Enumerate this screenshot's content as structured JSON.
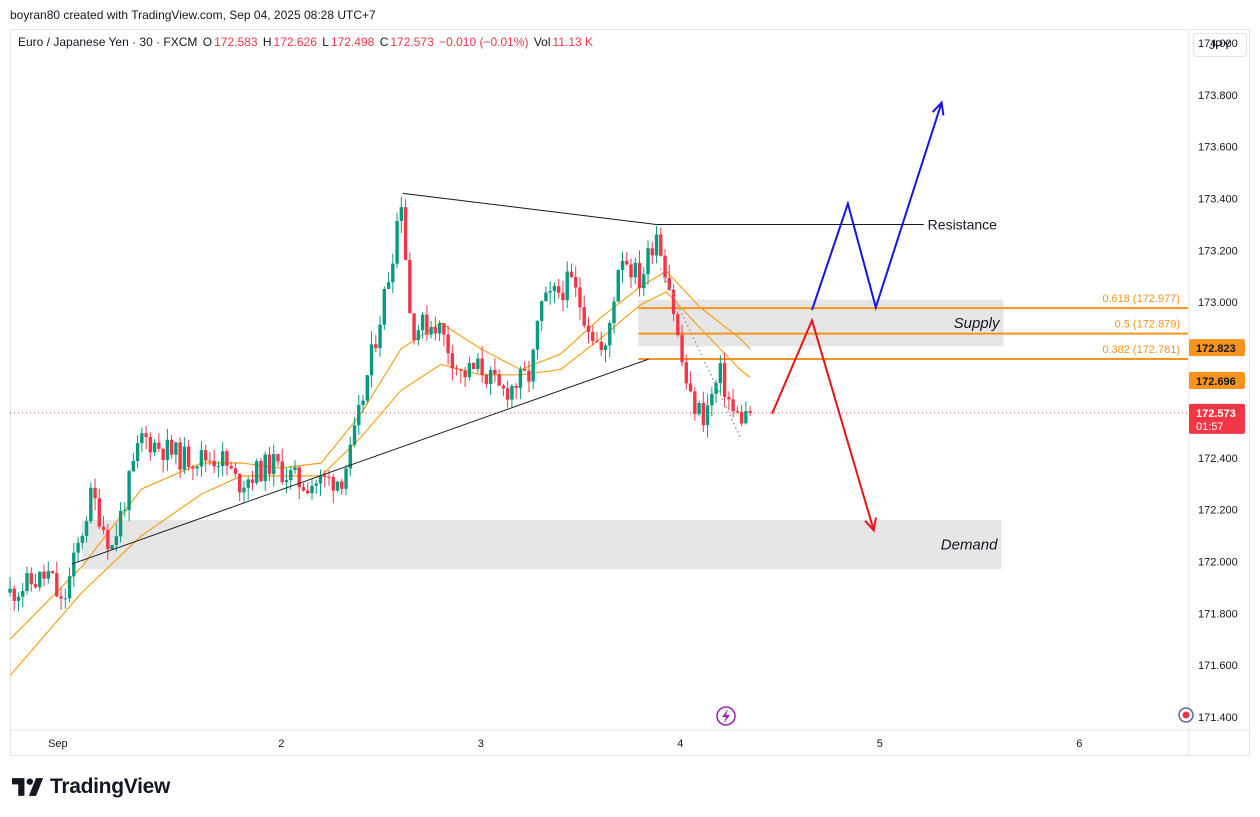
{
  "header": {
    "credit": "boyran80 created with TradingView.com, Sep 04, 2025 08:28 UTC+7"
  },
  "legend": {
    "symbol": "Euro / Japanese Yen · 30 · FXCM",
    "o_label": "O",
    "o_value": "172.583",
    "h_label": "H",
    "h_value": "172.626",
    "l_label": "L",
    "l_value": "172.498",
    "c_label": "C",
    "c_value": "172.573",
    "change": "−0.010 (−0.01%)",
    "vol_label": "Vol",
    "vol_value": "11.13 K"
  },
  "currency_button": "JPY",
  "brand": {
    "name": "TradingView",
    "icon": "tradingview-logo-icon"
  },
  "colors": {
    "up": "#089981",
    "down": "#f23645",
    "ema": "#f7a21b",
    "fib": "#f7931e",
    "zone": "#e6e6e6",
    "bull_path": "#1414e6",
    "bear_path": "#e61414"
  },
  "chart_data": {
    "type": "candlestick",
    "symbol": "EURJPY",
    "timeframe": "30",
    "y_axis": {
      "ticks": [
        "174.000",
        "173.800",
        "173.600",
        "173.400",
        "173.200",
        "173.000",
        "172.400",
        "172.200",
        "172.000",
        "171.800",
        "171.600",
        "171.400"
      ],
      "ylim": [
        171.35,
        174.05
      ]
    },
    "x_axis": {
      "ticks": [
        {
          "label": "Sep",
          "x": 0.88
        },
        {
          "label": "2",
          "x": 2
        },
        {
          "label": "3",
          "x": 3
        },
        {
          "label": "4",
          "x": 4
        },
        {
          "label": "5",
          "x": 5
        },
        {
          "label": "6",
          "x": 6
        }
      ],
      "xlim": [
        0.64,
        6.55
      ]
    },
    "price_labels": [
      {
        "value": "172.823",
        "price": 172.823,
        "color": "#f7931e"
      },
      {
        "value": "172.696",
        "price": 172.696,
        "color": "#f7931e"
      },
      {
        "value": "172.573",
        "countdown": "01:57",
        "price": 172.573,
        "color": "#f23645"
      }
    ],
    "zones": [
      {
        "label": "Supply",
        "x0": 3.79,
        "x1": 5.62,
        "y_low": 172.83,
        "y_high": 173.01
      },
      {
        "label": "Demand",
        "x0": 1.0,
        "x1": 5.61,
        "y_low": 171.97,
        "y_high": 172.16
      }
    ],
    "fib_levels": [
      {
        "label": "0.618 (172.977)",
        "price": 172.977
      },
      {
        "label": "0.5 (172.879)",
        "price": 172.879
      },
      {
        "label": "0.382 (172.781)",
        "price": 172.781
      }
    ],
    "resistance": {
      "label": "Resistance",
      "price": 173.3,
      "x0": 3.88,
      "x1": 5.22
    },
    "triangle": {
      "upper": [
        [
          2.61,
          173.42
        ],
        [
          3.88,
          173.3
        ]
      ],
      "lower": [
        [
          0.95,
          171.99
        ],
        [
          3.84,
          172.78
        ]
      ]
    },
    "bullish_path": [
      [
        4.66,
        172.97
      ],
      [
        4.84,
        173.38
      ],
      [
        4.98,
        172.98
      ],
      [
        5.31,
        173.77
      ]
    ],
    "bearish_path": [
      [
        4.46,
        172.57
      ],
      [
        4.66,
        172.93
      ],
      [
        4.97,
        172.12
      ]
    ],
    "ema_fast": [
      [
        0.64,
        171.7
      ],
      [
        1.0,
        171.98
      ],
      [
        1.3,
        172.28
      ],
      [
        1.6,
        172.38
      ],
      [
        1.8,
        172.38
      ],
      [
        2.0,
        172.36
      ],
      [
        2.2,
        172.38
      ],
      [
        2.4,
        172.57
      ],
      [
        2.6,
        172.82
      ],
      [
        2.8,
        172.92
      ],
      [
        3.0,
        172.82
      ],
      [
        3.2,
        172.74
      ],
      [
        3.4,
        172.8
      ],
      [
        3.6,
        172.94
      ],
      [
        3.8,
        173.06
      ],
      [
        3.93,
        173.12
      ],
      [
        4.1,
        172.98
      ],
      [
        4.3,
        172.86
      ],
      [
        4.35,
        172.82
      ]
    ],
    "ema_slow": [
      [
        0.64,
        171.56
      ],
      [
        1.0,
        171.88
      ],
      [
        1.3,
        172.1
      ],
      [
        1.6,
        172.26
      ],
      [
        1.8,
        172.33
      ],
      [
        2.0,
        172.33
      ],
      [
        2.2,
        172.33
      ],
      [
        2.4,
        172.48
      ],
      [
        2.6,
        172.66
      ],
      [
        2.8,
        172.76
      ],
      [
        3.0,
        172.72
      ],
      [
        3.2,
        172.72
      ],
      [
        3.4,
        172.74
      ],
      [
        3.6,
        172.86
      ],
      [
        3.8,
        172.99
      ],
      [
        3.93,
        173.04
      ],
      [
        4.1,
        172.9
      ],
      [
        4.3,
        172.74
      ],
      [
        4.35,
        172.71
      ]
    ],
    "price_path": [
      [
        0.64,
        171.88
      ],
      [
        0.84,
        171.95
      ],
      [
        0.9,
        171.82
      ],
      [
        1.05,
        172.26
      ],
      [
        1.15,
        172.05
      ],
      [
        1.3,
        172.48
      ],
      [
        1.5,
        172.4
      ],
      [
        1.7,
        172.4
      ],
      [
        1.78,
        172.3
      ],
      [
        1.95,
        172.38
      ],
      [
        2.1,
        172.3
      ],
      [
        2.3,
        172.32
      ],
      [
        2.35,
        172.42
      ],
      [
        2.45,
        172.78
      ],
      [
        2.55,
        173.15
      ],
      [
        2.6,
        173.42
      ],
      [
        2.65,
        172.9
      ],
      [
        2.78,
        172.92
      ],
      [
        2.9,
        172.72
      ],
      [
        3.0,
        172.75
      ],
      [
        3.1,
        172.65
      ],
      [
        3.25,
        172.72
      ],
      [
        3.3,
        172.98
      ],
      [
        3.45,
        173.08
      ],
      [
        3.55,
        172.9
      ],
      [
        3.62,
        172.78
      ],
      [
        3.7,
        173.2
      ],
      [
        3.8,
        173.08
      ],
      [
        3.88,
        173.28
      ],
      [
        3.95,
        173.05
      ],
      [
        4.0,
        172.8
      ],
      [
        4.05,
        172.62
      ],
      [
        4.12,
        172.56
      ],
      [
        4.2,
        172.72
      ],
      [
        4.27,
        172.56
      ],
      [
        4.32,
        172.56
      ],
      [
        4.35,
        172.57
      ]
    ],
    "volatility_path": [
      [
        3.9,
        173.13
      ],
      [
        4.16,
        172.71
      ],
      [
        4.3,
        172.48
      ]
    ]
  }
}
